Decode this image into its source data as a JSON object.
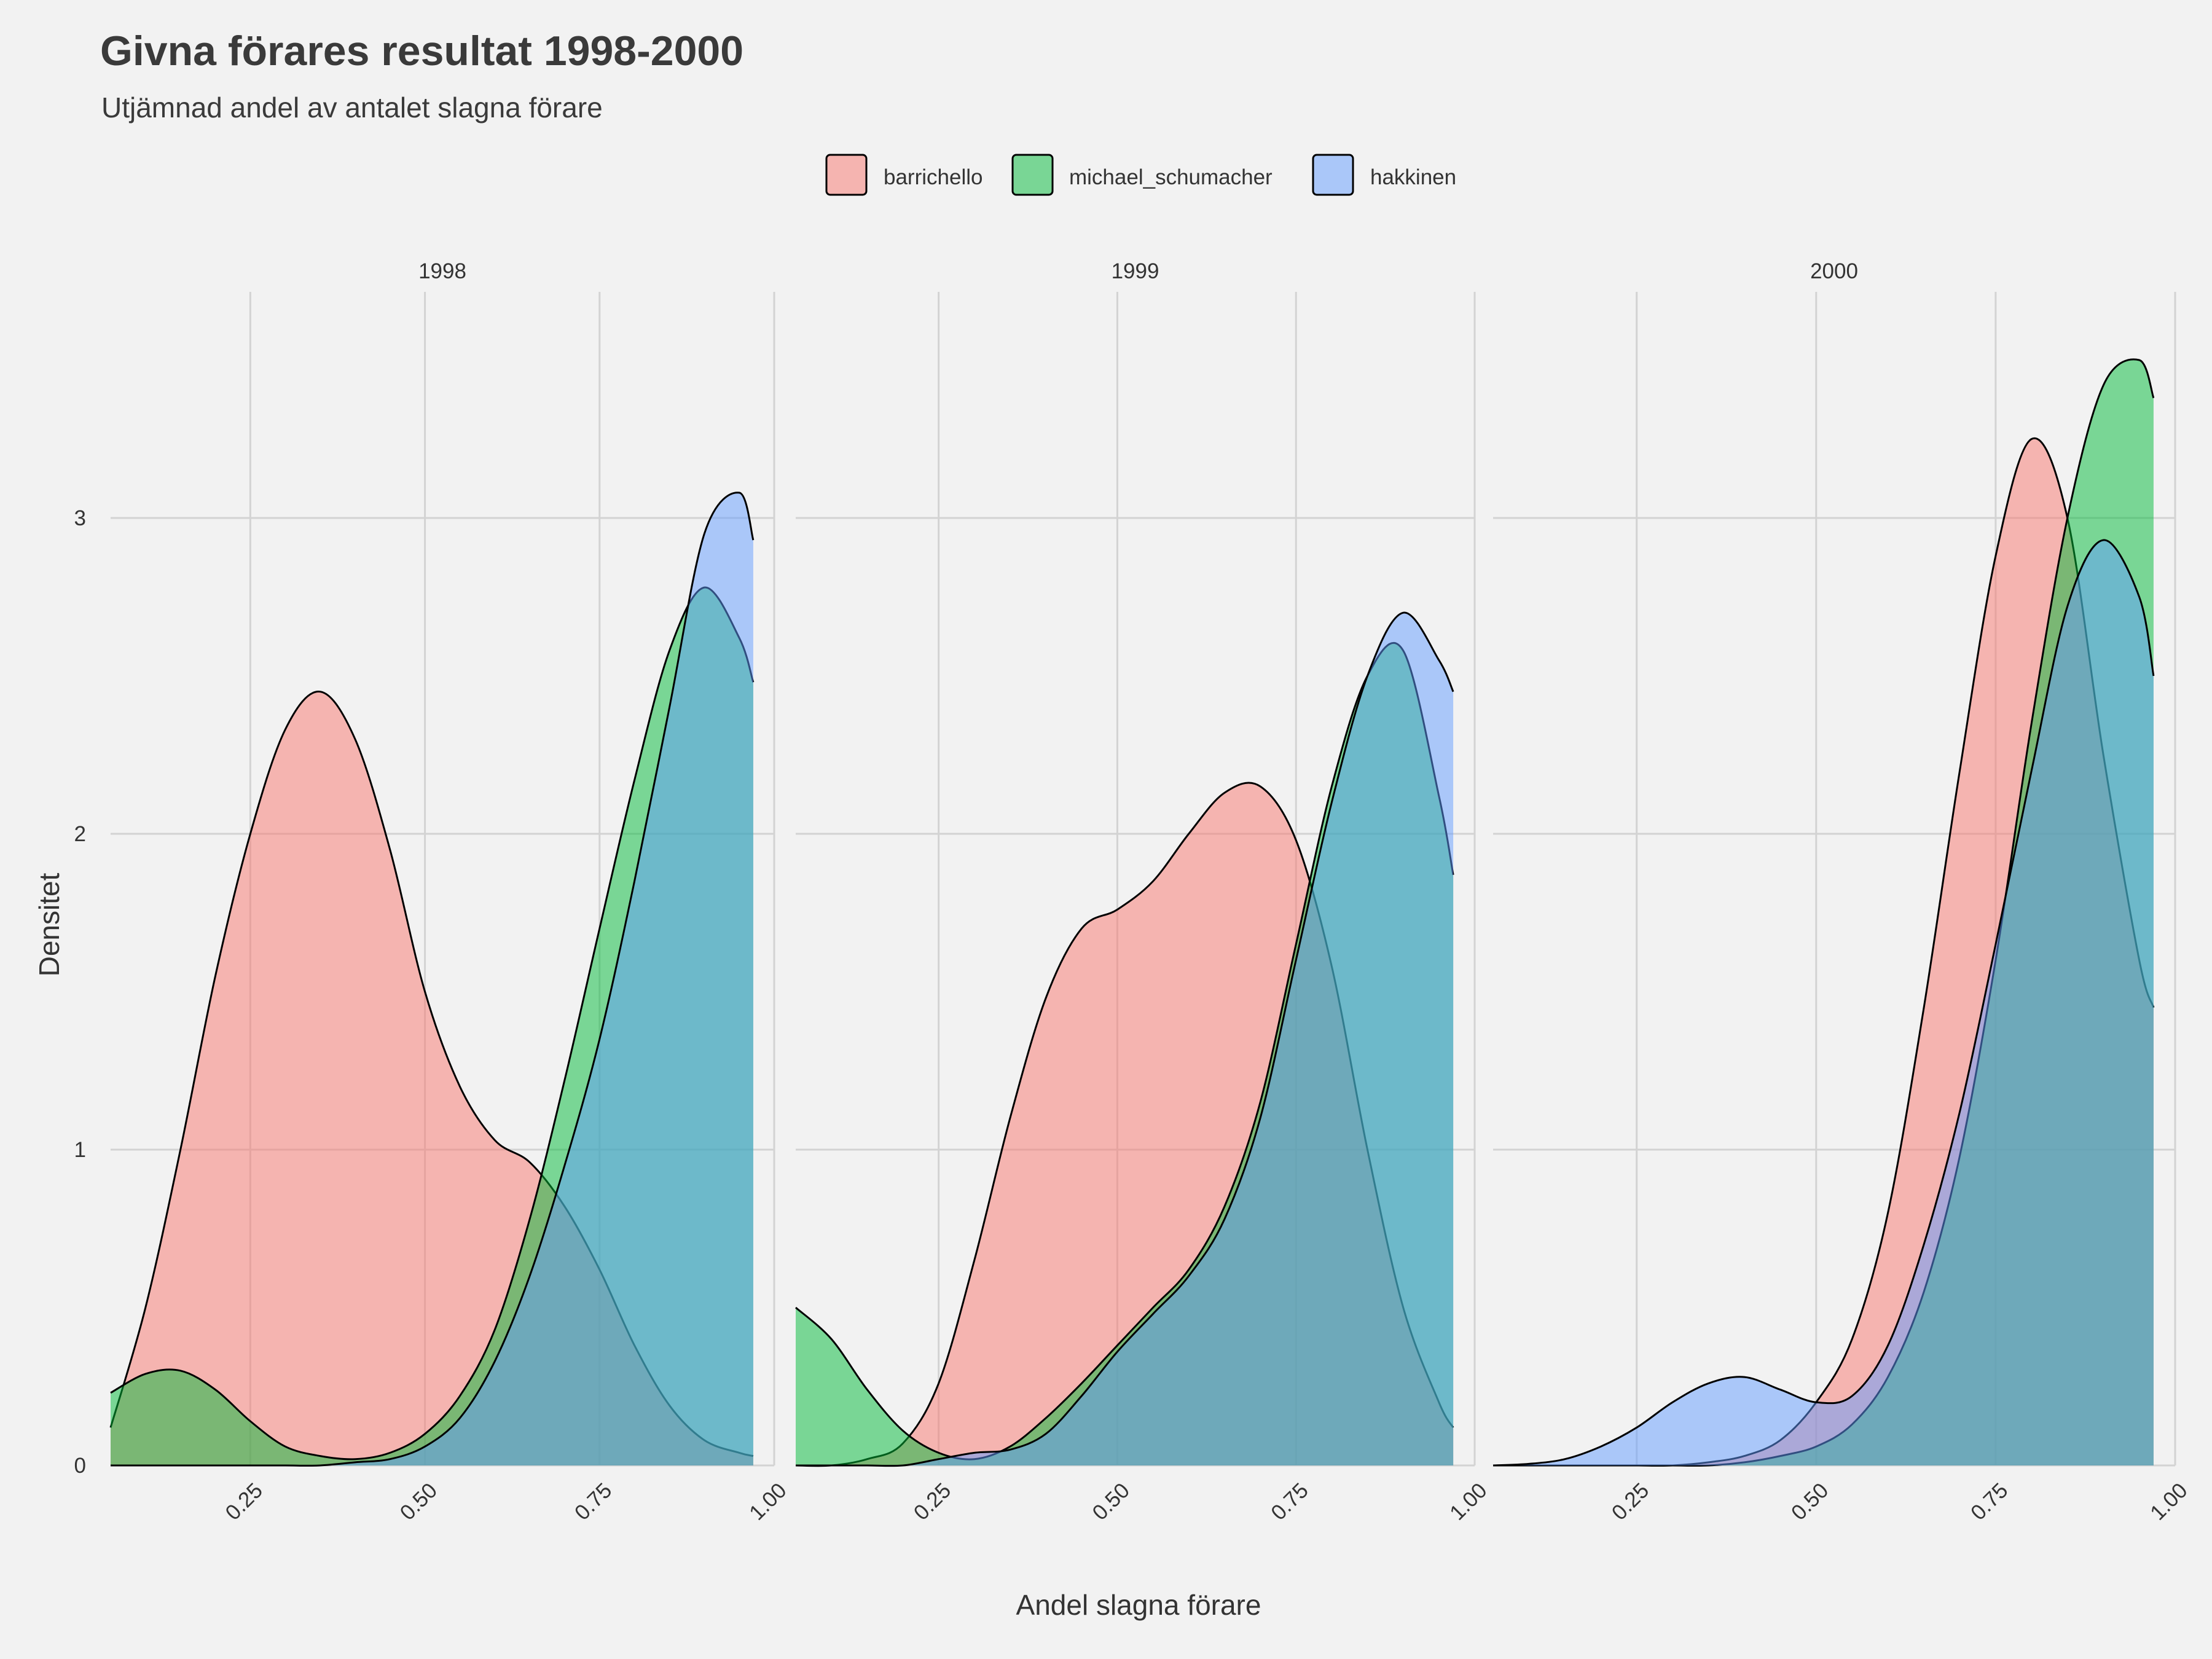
{
  "title": "Givna förares resultat 1998-2000",
  "subtitle": "Utjämnad andel av antalet slagna förare",
  "colors": {
    "barrichello": "#F8766D",
    "michael_schumacher": "#00BA38",
    "hakkinen": "#619CFF",
    "background": "#f2f2f2",
    "grid": "#d3d3d3"
  },
  "chart_data": {
    "type": "area",
    "chart_kind": "density",
    "xlabel": "Andel slagna förare",
    "ylabel": "Densitet",
    "xlim": [
      0.05,
      1.0
    ],
    "ylim": [
      0,
      3.5
    ],
    "x_ticks": [
      "0.25",
      "0.50",
      "0.75",
      "1.00"
    ],
    "y_ticks": [
      "0",
      "1",
      "2",
      "3"
    ],
    "grid": true,
    "legend_position": "top",
    "legend": [
      {
        "key": "barrichello",
        "label": "barrichello"
      },
      {
        "key": "michael_schumacher",
        "label": "michael_schumacher"
      },
      {
        "key": "hakkinen",
        "label": "hakkinen"
      }
    ],
    "facets": [
      {
        "label": "1998",
        "series": [
          {
            "name": "barrichello",
            "x": [
              0.05,
              0.1,
              0.15,
              0.2,
              0.25,
              0.3,
              0.35,
              0.4,
              0.45,
              0.5,
              0.55,
              0.6,
              0.65,
              0.7,
              0.75,
              0.8,
              0.85,
              0.9,
              0.95,
              0.97
            ],
            "y": [
              0.12,
              0.5,
              1.0,
              1.55,
              2.0,
              2.33,
              2.45,
              2.3,
              1.95,
              1.5,
              1.2,
              1.03,
              0.96,
              0.82,
              0.62,
              0.38,
              0.19,
              0.08,
              0.04,
              0.03
            ]
          },
          {
            "name": "michael_schumacher",
            "x": [
              0.05,
              0.1,
              0.15,
              0.2,
              0.25,
              0.3,
              0.35,
              0.4,
              0.45,
              0.5,
              0.55,
              0.6,
              0.65,
              0.7,
              0.75,
              0.8,
              0.85,
              0.9,
              0.95,
              0.97
            ],
            "y": [
              0.23,
              0.29,
              0.3,
              0.24,
              0.14,
              0.06,
              0.03,
              0.02,
              0.04,
              0.1,
              0.22,
              0.43,
              0.78,
              1.22,
              1.7,
              2.17,
              2.58,
              2.78,
              2.62,
              2.48
            ]
          },
          {
            "name": "hakkinen",
            "x": [
              0.05,
              0.1,
              0.15,
              0.2,
              0.25,
              0.3,
              0.35,
              0.4,
              0.45,
              0.5,
              0.55,
              0.6,
              0.65,
              0.7,
              0.75,
              0.8,
              0.85,
              0.9,
              0.95,
              0.97
            ],
            "y": [
              0,
              0,
              0,
              0,
              0,
              0,
              0,
              0.01,
              0.02,
              0.06,
              0.15,
              0.33,
              0.6,
              0.95,
              1.35,
              1.85,
              2.4,
              2.95,
              3.08,
              2.93
            ]
          }
        ]
      },
      {
        "label": "1999",
        "series": [
          {
            "name": "barrichello",
            "x": [
              0.05,
              0.1,
              0.15,
              0.2,
              0.25,
              0.3,
              0.35,
              0.4,
              0.45,
              0.5,
              0.55,
              0.6,
              0.65,
              0.7,
              0.75,
              0.8,
              0.85,
              0.9,
              0.95,
              0.97
            ],
            "y": [
              0,
              0,
              0.02,
              0.07,
              0.26,
              0.65,
              1.1,
              1.48,
              1.7,
              1.76,
              1.85,
              2.0,
              2.13,
              2.15,
              1.98,
              1.58,
              1.0,
              0.5,
              0.2,
              0.12
            ]
          },
          {
            "name": "michael_schumacher",
            "x": [
              0.05,
              0.1,
              0.15,
              0.2,
              0.25,
              0.3,
              0.35,
              0.4,
              0.45,
              0.5,
              0.55,
              0.6,
              0.65,
              0.7,
              0.75,
              0.8,
              0.85,
              0.9,
              0.95,
              0.97
            ],
            "y": [
              0.5,
              0.4,
              0.24,
              0.11,
              0.04,
              0.02,
              0.06,
              0.15,
              0.26,
              0.38,
              0.5,
              0.62,
              0.82,
              1.15,
              1.65,
              2.15,
              2.5,
              2.58,
              2.12,
              1.87
            ]
          },
          {
            "name": "hakkinen",
            "x": [
              0.05,
              0.1,
              0.15,
              0.2,
              0.25,
              0.3,
              0.35,
              0.4,
              0.45,
              0.5,
              0.55,
              0.6,
              0.65,
              0.7,
              0.75,
              0.8,
              0.85,
              0.9,
              0.95,
              0.97
            ],
            "y": [
              0,
              0,
              0,
              0,
              0.02,
              0.04,
              0.05,
              0.1,
              0.22,
              0.36,
              0.48,
              0.6,
              0.78,
              1.1,
              1.6,
              2.1,
              2.5,
              2.7,
              2.55,
              2.45
            ]
          }
        ]
      },
      {
        "label": "2000",
        "series": [
          {
            "name": "barrichello",
            "x": [
              0.05,
              0.1,
              0.15,
              0.2,
              0.25,
              0.3,
              0.35,
              0.4,
              0.45,
              0.5,
              0.55,
              0.6,
              0.65,
              0.7,
              0.75,
              0.8,
              0.85,
              0.9,
              0.95,
              0.97
            ],
            "y": [
              0,
              0,
              0,
              0,
              0,
              0,
              0.01,
              0.03,
              0.08,
              0.2,
              0.4,
              0.8,
              1.45,
              2.2,
              2.88,
              3.25,
              3.0,
              2.25,
              1.6,
              1.45
            ]
          },
          {
            "name": "michael_schumacher",
            "x": [
              0.05,
              0.1,
              0.15,
              0.2,
              0.25,
              0.3,
              0.35,
              0.4,
              0.45,
              0.5,
              0.55,
              0.6,
              0.65,
              0.7,
              0.75,
              0.8,
              0.85,
              0.9,
              0.95,
              0.97
            ],
            "y": [
              0,
              0,
              0,
              0,
              0,
              0,
              0,
              0.01,
              0.03,
              0.06,
              0.13,
              0.28,
              0.55,
              0.98,
              1.6,
              2.35,
              3.0,
              3.42,
              3.5,
              3.38
            ]
          },
          {
            "name": "hakkinen",
            "x": [
              0.05,
              0.1,
              0.15,
              0.2,
              0.25,
              0.3,
              0.35,
              0.4,
              0.45,
              0.5,
              0.55,
              0.6,
              0.65,
              0.7,
              0.75,
              0.8,
              0.85,
              0.9,
              0.95,
              0.97
            ],
            "y": [
              0,
              0.005,
              0.02,
              0.06,
              0.12,
              0.2,
              0.26,
              0.28,
              0.24,
              0.2,
              0.22,
              0.38,
              0.7,
              1.12,
              1.65,
              2.2,
              2.72,
              2.93,
              2.75,
              2.5
            ]
          }
        ]
      }
    ]
  }
}
